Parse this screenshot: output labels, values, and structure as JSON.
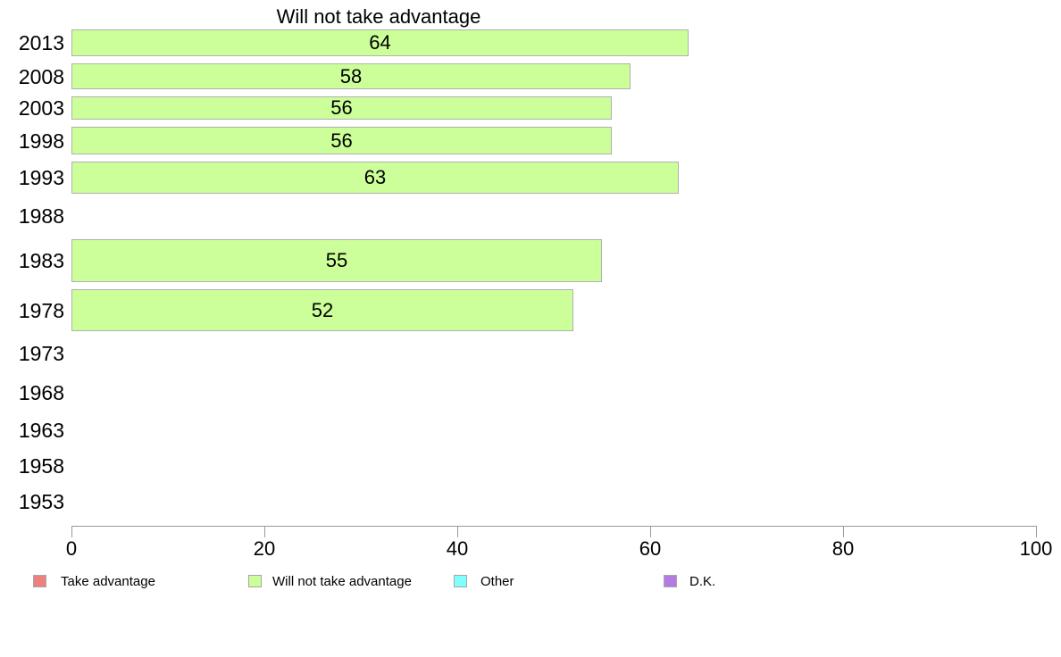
{
  "chart_data": {
    "type": "bar",
    "orientation": "horizontal",
    "title": "Will not take advantage",
    "categories": [
      "2013",
      "2008",
      "2003",
      "1998",
      "1993",
      "1988",
      "1983",
      "1978",
      "1973",
      "1968",
      "1963",
      "1958",
      "1953"
    ],
    "values": [
      64,
      58,
      56,
      56,
      63,
      null,
      55,
      52,
      null,
      null,
      null,
      null,
      null
    ],
    "xlabel": "",
    "ylabel": "",
    "xlim": [
      0,
      100
    ],
    "x_ticks": [
      0,
      20,
      40,
      60,
      80,
      100
    ],
    "grid": false,
    "bar_color": "#ccff99",
    "bar_border_color": "#b0b0b0",
    "value_label_color": "#000000",
    "legend_position": "bottom",
    "legend": [
      {
        "label": "Take advantage",
        "color": "#f08080"
      },
      {
        "label": "Will not take advantage",
        "color": "#ccff99"
      },
      {
        "label": "Other",
        "color": "#80ffff"
      },
      {
        "label": "D.K.",
        "color": "#b57be5"
      }
    ]
  }
}
